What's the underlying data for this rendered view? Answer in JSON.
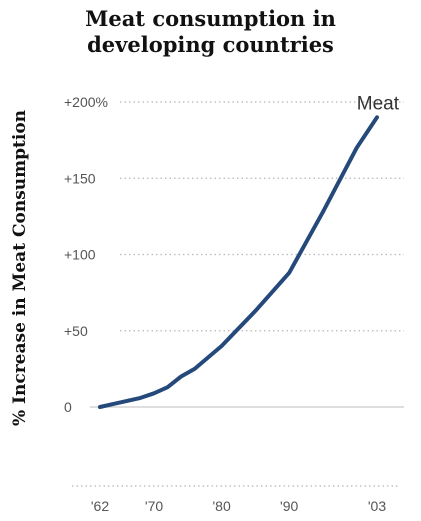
{
  "chart_data": {
    "type": "line",
    "title_lines": [
      "Meat consumption in",
      "developing countries"
    ],
    "ylabel": "% Increase in Meat Consumption",
    "x_ticks": [
      {
        "year": 1962,
        "label": "'62"
      },
      {
        "year": 1970,
        "label": "'70"
      },
      {
        "year": 1980,
        "label": "'80"
      },
      {
        "year": 1990,
        "label": "'90"
      },
      {
        "year": 2003,
        "label": "'03"
      }
    ],
    "y_ticks": [
      {
        "value": 0,
        "label": "0"
      },
      {
        "value": 50,
        "label": "+50"
      },
      {
        "value": 100,
        "label": "+100"
      },
      {
        "value": 150,
        "label": "+150"
      },
      {
        "value": 200,
        "label": "+200%"
      }
    ],
    "xlim": [
      1962,
      2003
    ],
    "ylim": [
      0,
      200
    ],
    "grid": true,
    "series": [
      {
        "name": "Meat",
        "color": "#24497a",
        "x": [
          1962,
          1964,
          1966,
          1968,
          1970,
          1972,
          1974,
          1976,
          1980,
          1985,
          1990,
          1995,
          2000,
          2003
        ],
        "y": [
          0,
          2,
          4,
          6,
          9,
          13,
          20,
          25,
          40,
          63,
          88,
          128,
          170,
          190
        ]
      }
    ]
  }
}
